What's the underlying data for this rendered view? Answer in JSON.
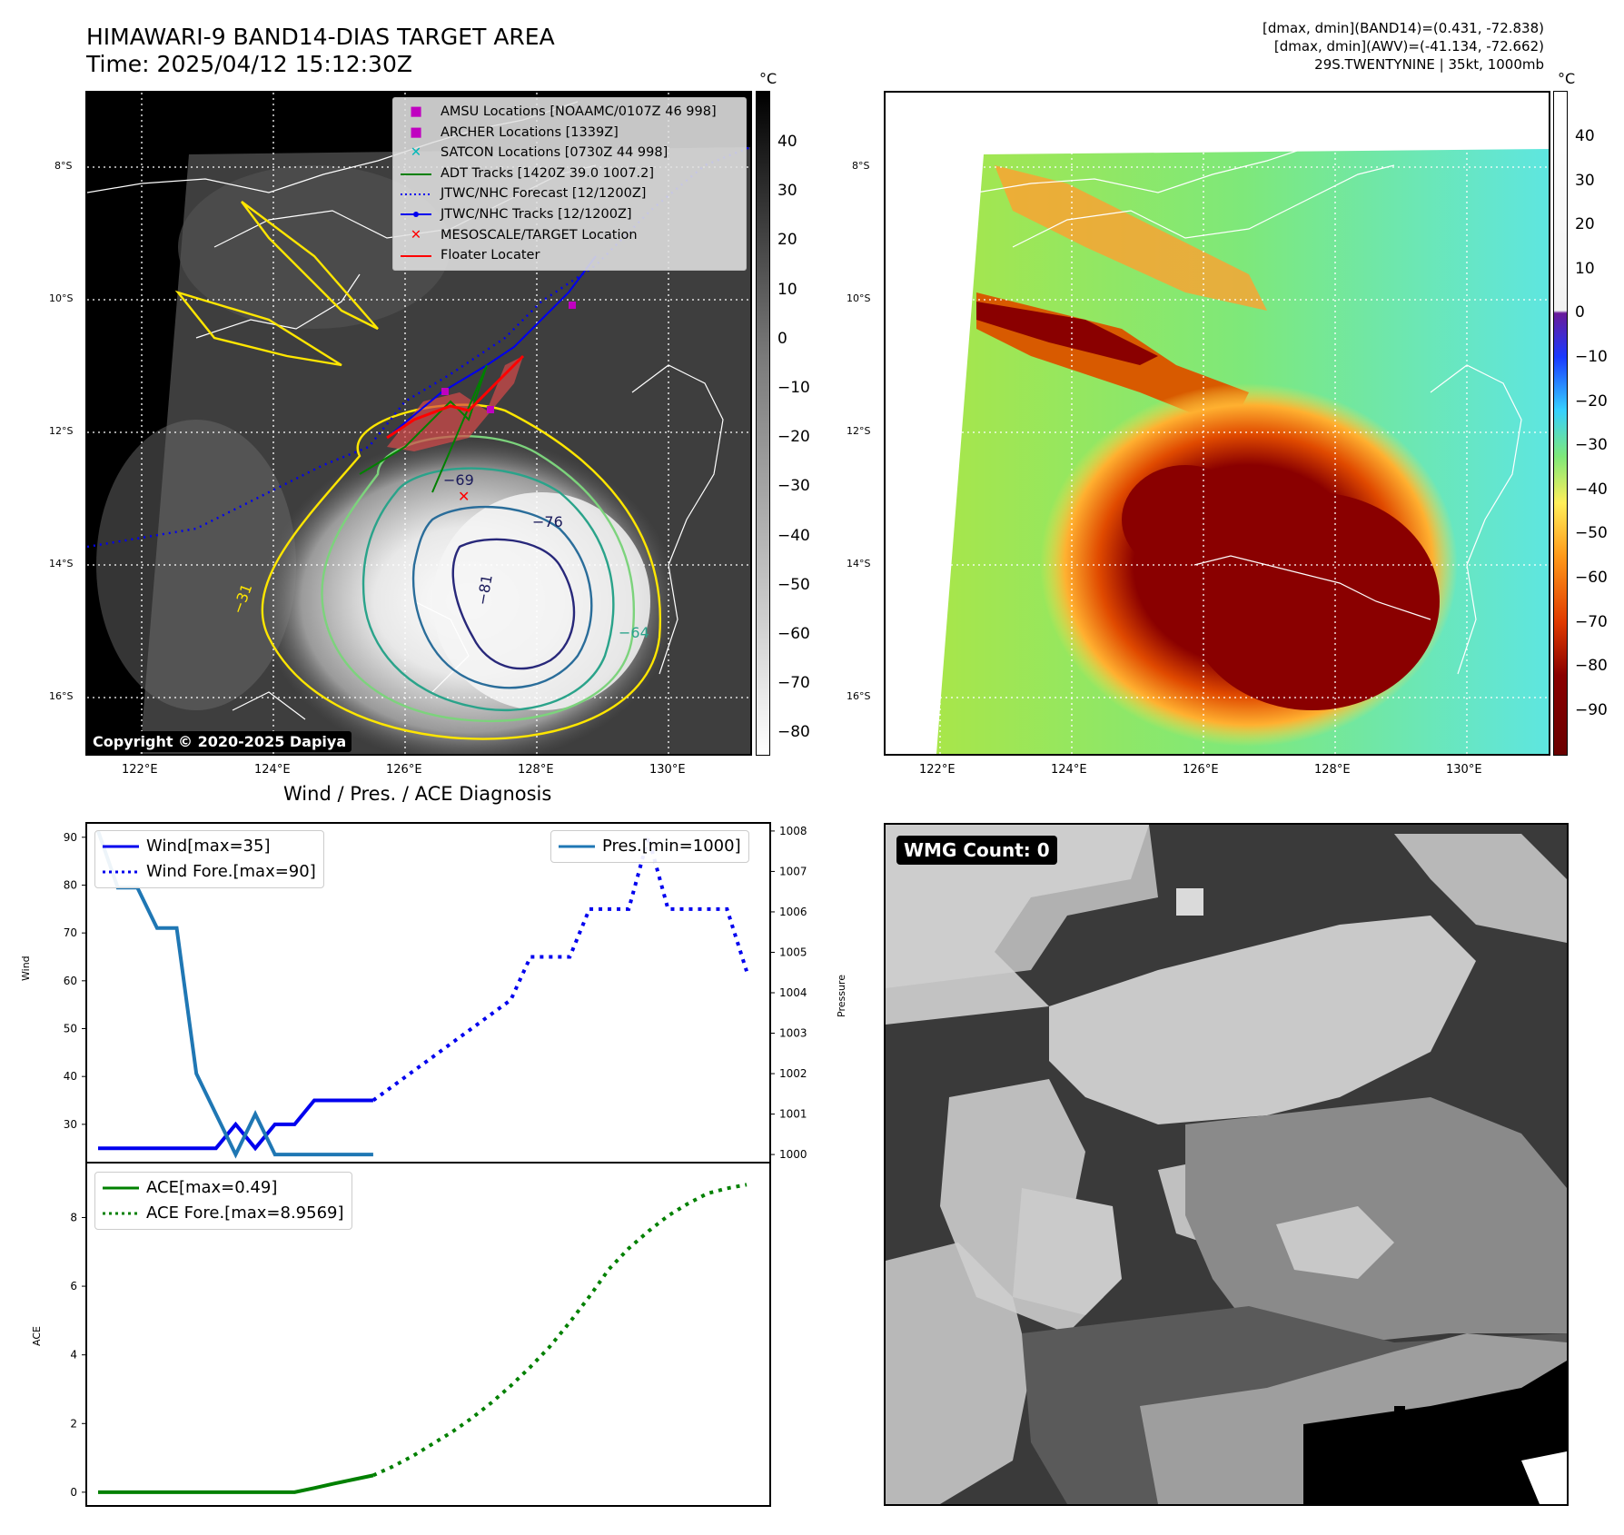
{
  "header": {
    "title_line1": "HIMAWARI-9 BAND14-DIAS TARGET AREA",
    "title_line2": "Time: 2025/04/12 15:12:30Z",
    "info_line1": "[dmax, dmin](BAND14)=(0.431, -72.838)",
    "info_line2": "[dmax, dmin](AWV)=(-41.134, -72.662)",
    "info_line3": "29S.TWENTYNINE | 35kt, 1000mb"
  },
  "colorbar_unit": "°C",
  "ir_colorbar_ticks": [
    "40",
    "30",
    "20",
    "10",
    "0",
    "−10",
    "−20",
    "−30",
    "−40",
    "−50",
    "−60",
    "−70",
    "−80"
  ],
  "awv_colorbar_ticks": [
    "40",
    "30",
    "20",
    "10",
    "0",
    "−10",
    "−20",
    "−30",
    "−40",
    "−50",
    "−60",
    "−70",
    "−80",
    "−90"
  ],
  "map_axes": {
    "lat_labels": [
      "8°S",
      "10°S",
      "12°S",
      "14°S",
      "16°S"
    ],
    "lon_labels": [
      "122°E",
      "124°E",
      "126°E",
      "128°E",
      "130°E"
    ]
  },
  "map_legend": [
    {
      "symbol": "square",
      "color": "#c000c0",
      "label": "AMSU Locations [NOAAMC/0107Z 46 998]"
    },
    {
      "symbol": "square",
      "color": "#c000c0",
      "label": "ARCHER Locations [1339Z]"
    },
    {
      "symbol": "x",
      "color": "#00b8b8",
      "label": "SATCON Locations [0730Z 44 998]"
    },
    {
      "symbol": "line",
      "color": "#008000",
      "label": "ADT Tracks [1420Z 39.0 1007.2]"
    },
    {
      "symbol": "dotted",
      "color": "#0000ee",
      "label": "JTWC/NHC Forecast [12/1200Z]"
    },
    {
      "symbol": "linedot",
      "color": "#0000ee",
      "label": "JTWC/NHC Tracks [12/1200Z]"
    },
    {
      "symbol": "x",
      "color": "#ff0000",
      "label": "MESOSCALE/TARGET Location"
    },
    {
      "symbol": "line",
      "color": "#ff0000",
      "label": "Floater Locater"
    }
  ],
  "contour_labels": [
    "−81",
    "−76",
    "−69",
    "−64",
    "−31"
  ],
  "copyright": "Copyright © 2020-2025 Dapiya",
  "wmg_label": "WMG Count: 0",
  "chart_data": [
    {
      "type": "line",
      "title": "Wind / Pres. / ACE Diagnosis",
      "ylabel": "Wind",
      "y2label": "Pressure",
      "ylim": [
        22,
        93
      ],
      "y2lim": [
        999.8,
        1008.2
      ],
      "yticks": [
        30,
        40,
        50,
        60,
        70,
        80,
        90
      ],
      "y2ticks": [
        1000,
        1001,
        1002,
        1003,
        1004,
        1005,
        1006,
        1007,
        1008
      ],
      "series": [
        {
          "name": "Wind[max=35]",
          "style": "solid",
          "color": "#0000ee",
          "axis": "left",
          "x": [
            0,
            1,
            2,
            3,
            4,
            5,
            6,
            7,
            8,
            9,
            10,
            11,
            12,
            13,
            14
          ],
          "y": [
            25,
            25,
            25,
            25,
            25,
            25,
            25,
            30,
            25,
            30,
            30,
            35,
            35,
            35,
            35
          ]
        },
        {
          "name": "Wind Fore.[max=90]",
          "style": "dotted",
          "color": "#0000ee",
          "axis": "left",
          "x": [
            14,
            15,
            16,
            17,
            18,
            19,
            20,
            21,
            22,
            23,
            24,
            25,
            26,
            27,
            28,
            29,
            30,
            31,
            32,
            33
          ],
          "y": [
            35,
            38,
            41,
            44,
            47,
            50,
            53,
            56,
            65,
            65,
            65,
            75,
            75,
            75,
            90,
            75,
            75,
            75,
            75,
            62
          ]
        },
        {
          "name": "Pres.[min=1000]",
          "style": "solid",
          "color": "#1f77b4",
          "axis": "right",
          "x": [
            0,
            1,
            2,
            3,
            4,
            5,
            6,
            7,
            8,
            9,
            10,
            11,
            12,
            13,
            14
          ],
          "y": [
            1008,
            1006.6,
            1006.6,
            1005.6,
            1005.6,
            1002,
            1001,
            1000,
            1001,
            1000,
            1000,
            1000,
            1000,
            1000,
            1000
          ]
        }
      ]
    },
    {
      "type": "line",
      "ylabel": "ACE",
      "ylim": [
        -0.4,
        9.6
      ],
      "yticks": [
        0,
        2,
        4,
        6,
        8
      ],
      "series": [
        {
          "name": "ACE[max=0.49]",
          "style": "solid",
          "color": "#008000",
          "x": [
            0,
            1,
            2,
            3,
            4,
            5,
            6,
            7,
            8,
            9,
            10,
            11,
            12,
            13,
            14
          ],
          "y": [
            0,
            0,
            0,
            0,
            0,
            0,
            0,
            0,
            0,
            0,
            0,
            0.12,
            0.25,
            0.37,
            0.49
          ]
        },
        {
          "name": "ACE Fore.[max=8.9569]",
          "style": "dotted",
          "color": "#008000",
          "x": [
            14,
            15,
            16,
            17,
            18,
            19,
            20,
            21,
            22,
            23,
            24,
            25,
            26,
            27,
            28,
            29,
            30,
            31,
            32,
            33
          ],
          "y": [
            0.49,
            0.75,
            1.05,
            1.4,
            1.75,
            2.15,
            2.6,
            3.1,
            3.65,
            4.25,
            4.95,
            5.7,
            6.5,
            7.1,
            7.6,
            8.05,
            8.4,
            8.7,
            8.85,
            8.9569
          ]
        }
      ]
    }
  ]
}
